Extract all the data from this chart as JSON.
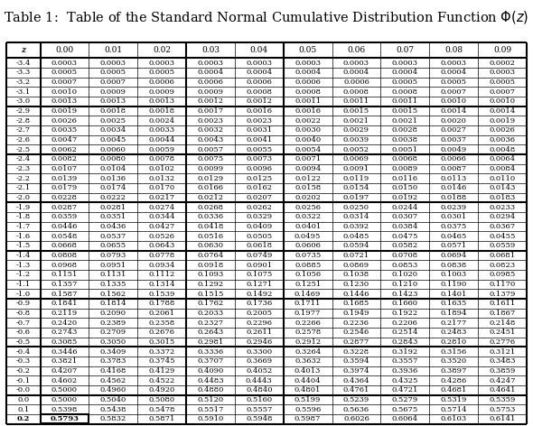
{
  "title": "Table 1:  Table of the Standard Normal Cumulative Distribution Function $\\Phi(z)$",
  "col_headers": [
    "z",
    "0.00",
    "0.01",
    "0.02",
    "0.03",
    "0.04",
    "0.05",
    "0.06",
    "0.07",
    "0.08",
    "0.09"
  ],
  "z_labels": [
    "-3.4",
    "-3.3",
    "-3.2",
    "-3.1",
    "-3.0",
    "-2.9",
    "-2.8",
    "-2.7",
    "-2.6",
    "-2.5",
    "-2.4",
    "-2.3",
    "-2.2",
    "-2.1",
    "-2.0",
    "-1.9",
    "-1.8",
    "-1.7",
    "-1.6",
    "-1.5",
    "-1.4",
    "-1.3",
    "-1.2",
    "-1.1",
    "-1.0",
    "-0.9",
    "-0.8",
    "-0.7",
    "-0.6",
    "-0.5",
    "-0.4",
    "-0.3",
    "-0.2",
    "-0.1",
    "-0.0",
    "0.0",
    "0.1",
    "0.2"
  ],
  "table_data": [
    [
      0.0003,
      0.0003,
      0.0003,
      0.0003,
      0.0003,
      0.0003,
      0.0003,
      0.0003,
      0.0003,
      0.0002
    ],
    [
      0.0005,
      0.0005,
      0.0005,
      0.0004,
      0.0004,
      0.0004,
      0.0004,
      0.0004,
      0.0004,
      0.0003
    ],
    [
      0.0007,
      0.0007,
      0.0006,
      0.0006,
      0.0006,
      0.0006,
      0.0006,
      0.0005,
      0.0005,
      0.0005
    ],
    [
      0.001,
      0.0009,
      0.0009,
      0.0009,
      0.0008,
      0.0008,
      0.0008,
      0.0008,
      0.0007,
      0.0007
    ],
    [
      0.0013,
      0.0013,
      0.0013,
      0.0012,
      0.0012,
      0.0011,
      0.0011,
      0.0011,
      0.001,
      0.001
    ],
    [
      0.0019,
      0.0018,
      0.0018,
      0.0017,
      0.0016,
      0.0016,
      0.0015,
      0.0015,
      0.0014,
      0.0014
    ],
    [
      0.0026,
      0.0025,
      0.0024,
      0.0023,
      0.0023,
      0.0022,
      0.0021,
      0.0021,
      0.002,
      0.0019
    ],
    [
      0.0035,
      0.0034,
      0.0033,
      0.0032,
      0.0031,
      0.003,
      0.0029,
      0.0028,
      0.0027,
      0.0026
    ],
    [
      0.0047,
      0.0045,
      0.0044,
      0.0043,
      0.0041,
      0.004,
      0.0039,
      0.0038,
      0.0037,
      0.0036
    ],
    [
      0.0062,
      0.006,
      0.0059,
      0.0057,
      0.0055,
      0.0054,
      0.0052,
      0.0051,
      0.0049,
      0.0048
    ],
    [
      0.0082,
      0.008,
      0.0078,
      0.0075,
      0.0073,
      0.0071,
      0.0069,
      0.0068,
      0.0066,
      0.0064
    ],
    [
      0.0107,
      0.0104,
      0.0102,
      0.0099,
      0.0096,
      0.0094,
      0.0091,
      0.0089,
      0.0087,
      0.0084
    ],
    [
      0.0139,
      0.0136,
      0.0132,
      0.0129,
      0.0125,
      0.0122,
      0.0119,
      0.0116,
      0.0113,
      0.011
    ],
    [
      0.0179,
      0.0174,
      0.017,
      0.0166,
      0.0162,
      0.0158,
      0.0154,
      0.015,
      0.0146,
      0.0143
    ],
    [
      0.0228,
      0.0222,
      0.0217,
      0.0212,
      0.0207,
      0.0202,
      0.0197,
      0.0192,
      0.0188,
      0.0183
    ],
    [
      0.0287,
      0.0281,
      0.0274,
      0.0268,
      0.0262,
      0.0256,
      0.025,
      0.0244,
      0.0239,
      0.0233
    ],
    [
      0.0359,
      0.0351,
      0.0344,
      0.0336,
      0.0329,
      0.0322,
      0.0314,
      0.0307,
      0.0301,
      0.0294
    ],
    [
      0.0446,
      0.0436,
      0.0427,
      0.0418,
      0.0409,
      0.0401,
      0.0392,
      0.0384,
      0.0375,
      0.0367
    ],
    [
      0.0548,
      0.0537,
      0.0526,
      0.0516,
      0.0505,
      0.0495,
      0.0485,
      0.0475,
      0.0465,
      0.0455
    ],
    [
      0.0668,
      0.0655,
      0.0643,
      0.063,
      0.0618,
      0.0606,
      0.0594,
      0.0582,
      0.0571,
      0.0559
    ],
    [
      0.0808,
      0.0793,
      0.0778,
      0.0764,
      0.0749,
      0.0735,
      0.0721,
      0.0708,
      0.0694,
      0.0681
    ],
    [
      0.0968,
      0.0951,
      0.0934,
      0.0918,
      0.0901,
      0.0885,
      0.0869,
      0.0853,
      0.0838,
      0.0823
    ],
    [
      0.1151,
      0.1131,
      0.1112,
      0.1093,
      0.1075,
      0.1056,
      0.1038,
      0.102,
      0.1003,
      0.0985
    ],
    [
      0.1357,
      0.1335,
      0.1314,
      0.1292,
      0.1271,
      0.1251,
      0.123,
      0.121,
      0.119,
      0.117
    ],
    [
      0.1587,
      0.1562,
      0.1539,
      0.1515,
      0.1492,
      0.1469,
      0.1446,
      0.1423,
      0.1401,
      0.1379
    ],
    [
      0.1841,
      0.1814,
      0.1788,
      0.1762,
      0.1736,
      0.1711,
      0.1685,
      0.166,
      0.1635,
      0.1611
    ],
    [
      0.2119,
      0.209,
      0.2061,
      0.2033,
      0.2005,
      0.1977,
      0.1949,
      0.1922,
      0.1894,
      0.1867
    ],
    [
      0.242,
      0.2389,
      0.2358,
      0.2327,
      0.2296,
      0.2266,
      0.2236,
      0.2206,
      0.2177,
      0.2148
    ],
    [
      0.2743,
      0.2709,
      0.2676,
      0.2643,
      0.2611,
      0.2578,
      0.2546,
      0.2514,
      0.2483,
      0.2451
    ],
    [
      0.3085,
      0.305,
      0.3015,
      0.2981,
      0.2946,
      0.2912,
      0.2877,
      0.2843,
      0.281,
      0.2776
    ],
    [
      0.3446,
      0.3409,
      0.3372,
      0.3336,
      0.33,
      0.3264,
      0.3228,
      0.3192,
      0.3156,
      0.3121
    ],
    [
      0.3821,
      0.3783,
      0.3745,
      0.3707,
      0.3669,
      0.3632,
      0.3594,
      0.3557,
      0.352,
      0.3483
    ],
    [
      0.4207,
      0.4168,
      0.4129,
      0.409,
      0.4052,
      0.4013,
      0.3974,
      0.3936,
      0.3897,
      0.3859
    ],
    [
      0.4602,
      0.4562,
      0.4522,
      0.4483,
      0.4443,
      0.4404,
      0.4364,
      0.4325,
      0.4286,
      0.4247
    ],
    [
      0.5,
      0.496,
      0.492,
      0.488,
      0.484,
      0.4801,
      0.4761,
      0.4721,
      0.4681,
      0.4641
    ],
    [
      0.5,
      0.504,
      0.508,
      0.512,
      0.516,
      0.5199,
      0.5239,
      0.5279,
      0.5319,
      0.5359
    ],
    [
      0.5398,
      0.5438,
      0.5478,
      0.5517,
      0.5557,
      0.5596,
      0.5636,
      0.5675,
      0.5714,
      0.5753
    ],
    [
      0.5793,
      0.5832,
      0.5871,
      0.591,
      0.5948,
      0.5987,
      0.6026,
      0.6064,
      0.6103,
      0.6141
    ]
  ],
  "group_separators_before": [
    5,
    10,
    15,
    20,
    25,
    30,
    35
  ],
  "bold_cell_row": 37,
  "bold_cell_col": 0,
  "background_color": "#ffffff",
  "lw_thick": 1.5,
  "lw_thin": 0.5,
  "font_size": 6.0,
  "header_font_size": 6.5,
  "title_font_size": 10.5
}
